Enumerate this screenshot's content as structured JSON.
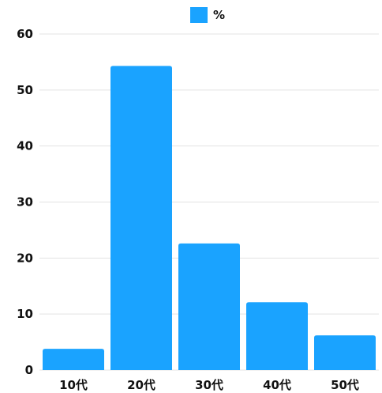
{
  "chart_data": {
    "type": "bar",
    "categories": [
      "10代",
      "20代",
      "30代",
      "40代",
      "50代"
    ],
    "series": [
      {
        "name": "%",
        "values": [
          3.8,
          54.3,
          22.6,
          12.1,
          6.2
        ],
        "color": "#1aa3ff"
      }
    ],
    "ylim": [
      0,
      60
    ],
    "yticks": [
      0,
      10,
      20,
      30,
      40,
      50,
      60
    ],
    "grid": true,
    "legend_position": "top-center",
    "title": "",
    "xlabel": "",
    "ylabel": ""
  }
}
